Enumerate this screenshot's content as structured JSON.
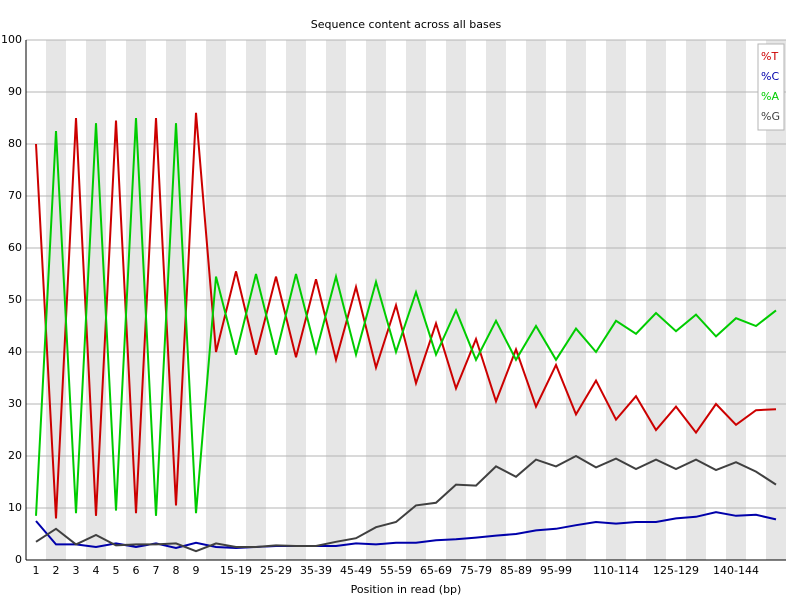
{
  "chart_data": {
    "type": "line",
    "title": "Sequence content across all bases",
    "x_label": "Position in read (bp)",
    "categories": [
      "1",
      "2",
      "3",
      "4",
      "5",
      "6",
      "7",
      "8",
      "9",
      null,
      "15-19",
      null,
      "25-29",
      null,
      "35-39",
      null,
      "45-49",
      null,
      "55-59",
      null,
      "65-69",
      null,
      "75-79",
      null,
      "85-89",
      null,
      "95-99",
      null,
      null,
      "110-114",
      null,
      null,
      "125-129",
      null,
      null,
      "140-144",
      null,
      null
    ],
    "series": [
      {
        "name": "%T",
        "color": "#cc0000",
        "values": [
          80,
          8,
          85,
          8.5,
          84.5,
          9,
          85,
          10.5,
          86,
          40,
          55.5,
          39.5,
          54.5,
          39,
          54,
          38.5,
          52.5,
          37,
          49,
          34,
          45.5,
          33,
          42.5,
          30.5,
          40.5,
          29.5,
          37.5,
          28,
          34.5,
          27,
          31.5,
          25,
          29.5,
          24.5,
          30,
          26,
          28.8,
          29
        ]
      },
      {
        "name": "%C",
        "color": "#0000aa",
        "values": [
          7.5,
          3,
          3,
          2.5,
          3.2,
          2.5,
          3.2,
          2.3,
          3.3,
          2.5,
          2.3,
          2.5,
          2.7,
          2.7,
          2.7,
          2.7,
          3.2,
          3,
          3.3,
          3.3,
          3.8,
          4,
          4.3,
          4.7,
          5,
          5.7,
          6,
          6.7,
          7.3,
          7,
          7.3,
          7.3,
          8,
          8.3,
          9.2,
          8.5,
          8.7,
          7.8
        ]
      },
      {
        "name": "%A",
        "color": "#00cc00",
        "values": [
          8.5,
          82.5,
          9,
          84,
          9.5,
          85,
          8.5,
          84,
          9,
          54.5,
          39.5,
          55,
          39.5,
          55,
          40,
          54.5,
          39.5,
          53.5,
          40,
          51.5,
          39.5,
          48,
          38.5,
          46,
          38.5,
          45,
          38.5,
          44.5,
          40,
          46,
          43.5,
          47.5,
          44,
          47.2,
          43,
          46.5,
          45,
          48
        ]
      },
      {
        "name": "%G",
        "color": "#404040",
        "values": [
          3.5,
          6,
          3,
          4.8,
          2.8,
          3,
          3,
          3.2,
          1.7,
          3.2,
          2.5,
          2.5,
          2.8,
          2.7,
          2.7,
          3.5,
          4.2,
          6.3,
          7.3,
          10.5,
          11,
          14.5,
          14.3,
          18,
          16,
          19.3,
          18,
          20,
          17.8,
          19.5,
          17.5,
          19.3,
          17.5,
          19.3,
          17.3,
          18.8,
          17,
          14.5
        ]
      }
    ],
    "ylim": [
      0,
      100
    ],
    "yticks": [
      0,
      10,
      20,
      30,
      40,
      50,
      60,
      70,
      80,
      90,
      100
    ],
    "grid": true,
    "legend": "top-right"
  }
}
